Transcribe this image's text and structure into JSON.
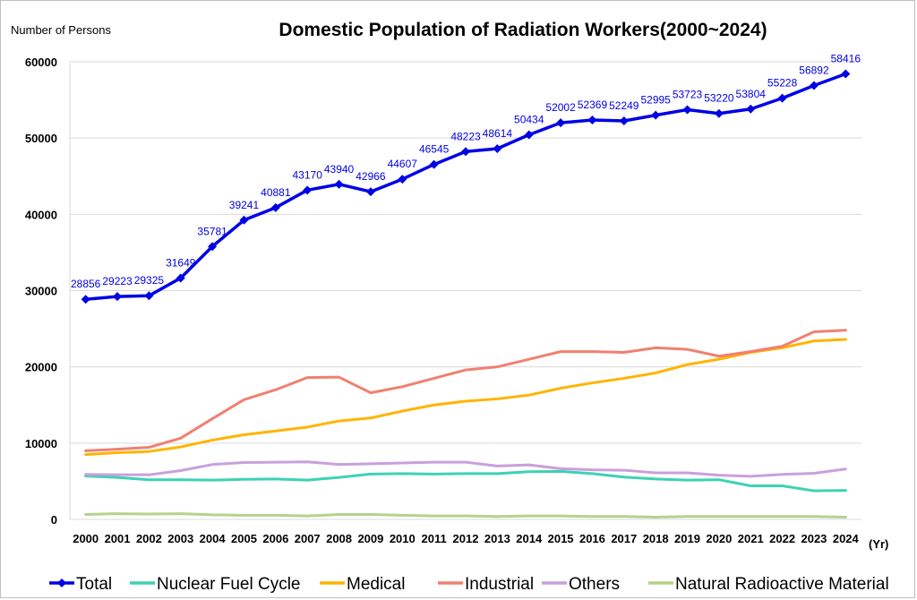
{
  "chart_data": {
    "type": "line",
    "title": "Domestic Population of Radiation Workers(2000~2024)",
    "ylabel": "Number of Persons",
    "xlabel": "(Yr)",
    "ylim": [
      0,
      60000
    ],
    "yticks": [
      "0",
      "10000",
      "20000",
      "30000",
      "40000",
      "50000",
      "60000"
    ],
    "grid": true,
    "legend_position": "bottom",
    "categories": [
      "2000",
      "2001",
      "2002",
      "2003",
      "2004",
      "2005",
      "2006",
      "2007",
      "2008",
      "2009",
      "2010",
      "2011",
      "2012",
      "2013",
      "2014",
      "2015",
      "2016",
      "2017",
      "2018",
      "2019",
      "2020",
      "2021",
      "2022",
      "2023",
      "2024"
    ],
    "series": [
      {
        "name": "Total",
        "color": "#0000e6",
        "marker": "diamond",
        "data_labels": true,
        "values": [
          28856,
          29223,
          29325,
          31649,
          35781,
          39241,
          40881,
          43170,
          43940,
          42966,
          44607,
          46545,
          48223,
          48614,
          50434,
          52002,
          52369,
          52249,
          52995,
          53723,
          53220,
          53804,
          55228,
          56892,
          58416
        ]
      },
      {
        "name": "Nuclear Fuel Cycle",
        "color": "#3cd2b4",
        "values": [
          5700,
          5500,
          5200,
          5200,
          5150,
          5250,
          5300,
          5150,
          5500,
          5950,
          6000,
          5950,
          6000,
          6000,
          6250,
          6300,
          6000,
          5550,
          5300,
          5150,
          5200,
          4400,
          4400,
          3750,
          3800
        ]
      },
      {
        "name": "Medical",
        "color": "#ffb400",
        "values": [
          8500,
          8750,
          8900,
          9500,
          10400,
          11100,
          11600,
          12100,
          12900,
          13300,
          14200,
          15000,
          15500,
          15800,
          16300,
          17200,
          17900,
          18500,
          19200,
          20300,
          21000,
          21900,
          22500,
          23400,
          23600
        ]
      },
      {
        "name": "Industrial",
        "color": "#f08070",
        "values": [
          9000,
          9200,
          9450,
          10650,
          13200,
          15700,
          17000,
          18600,
          18650,
          16600,
          17400,
          18500,
          19600,
          20000,
          21000,
          22000,
          22000,
          21900,
          22500,
          22300,
          21400,
          22000,
          22700,
          24600,
          24800
        ]
      },
      {
        "name": "Others",
        "color": "#c8a0dc",
        "values": [
          5900,
          5850,
          5850,
          6400,
          7200,
          7450,
          7500,
          7550,
          7200,
          7300,
          7400,
          7500,
          7500,
          7000,
          7150,
          6650,
          6500,
          6450,
          6100,
          6100,
          5800,
          5650,
          5900,
          6050,
          6600
        ]
      },
      {
        "name": "Natural Radioactive Material",
        "color": "#b4d28c",
        "values": [
          650,
          750,
          700,
          750,
          600,
          550,
          550,
          450,
          650,
          650,
          550,
          450,
          450,
          380,
          450,
          450,
          380,
          380,
          300,
          380,
          380,
          380,
          380,
          380,
          300
        ]
      }
    ]
  }
}
